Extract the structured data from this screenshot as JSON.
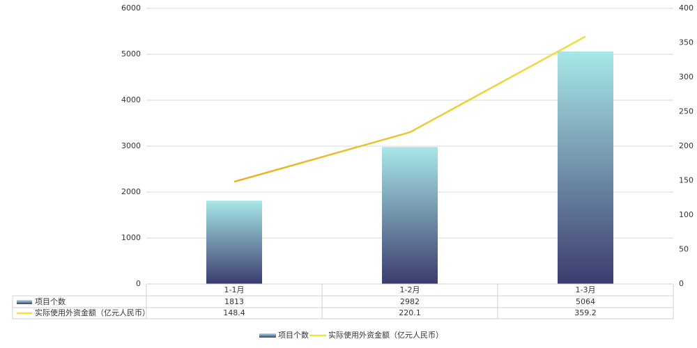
{
  "chart_data": {
    "type": "bar",
    "categories": [
      "1-1月",
      "1-2月",
      "1-3月"
    ],
    "series": [
      {
        "name": "项目个数",
        "type": "bar",
        "colors": [
          "#a8e8e8",
          "#3b3b6e"
        ],
        "values": [
          1813,
          2982,
          5064
        ]
      },
      {
        "name": "实际使用外资金额（亿元人民币）",
        "type": "line",
        "axis": "y2",
        "colors": [
          "#e8b020",
          "#f0e040"
        ],
        "values": [
          148.4,
          220.1,
          359.2
        ]
      }
    ],
    "ylim": [
      0,
      6000
    ],
    "yticks": [
      0,
      1000,
      2000,
      3000,
      4000,
      5000,
      6000
    ],
    "y2lim": [
      0,
      400
    ],
    "y2ticks": [
      0,
      50,
      100,
      150,
      200,
      250,
      300,
      350,
      400
    ],
    "grid": true,
    "legend": "bottom",
    "data_table": true
  }
}
